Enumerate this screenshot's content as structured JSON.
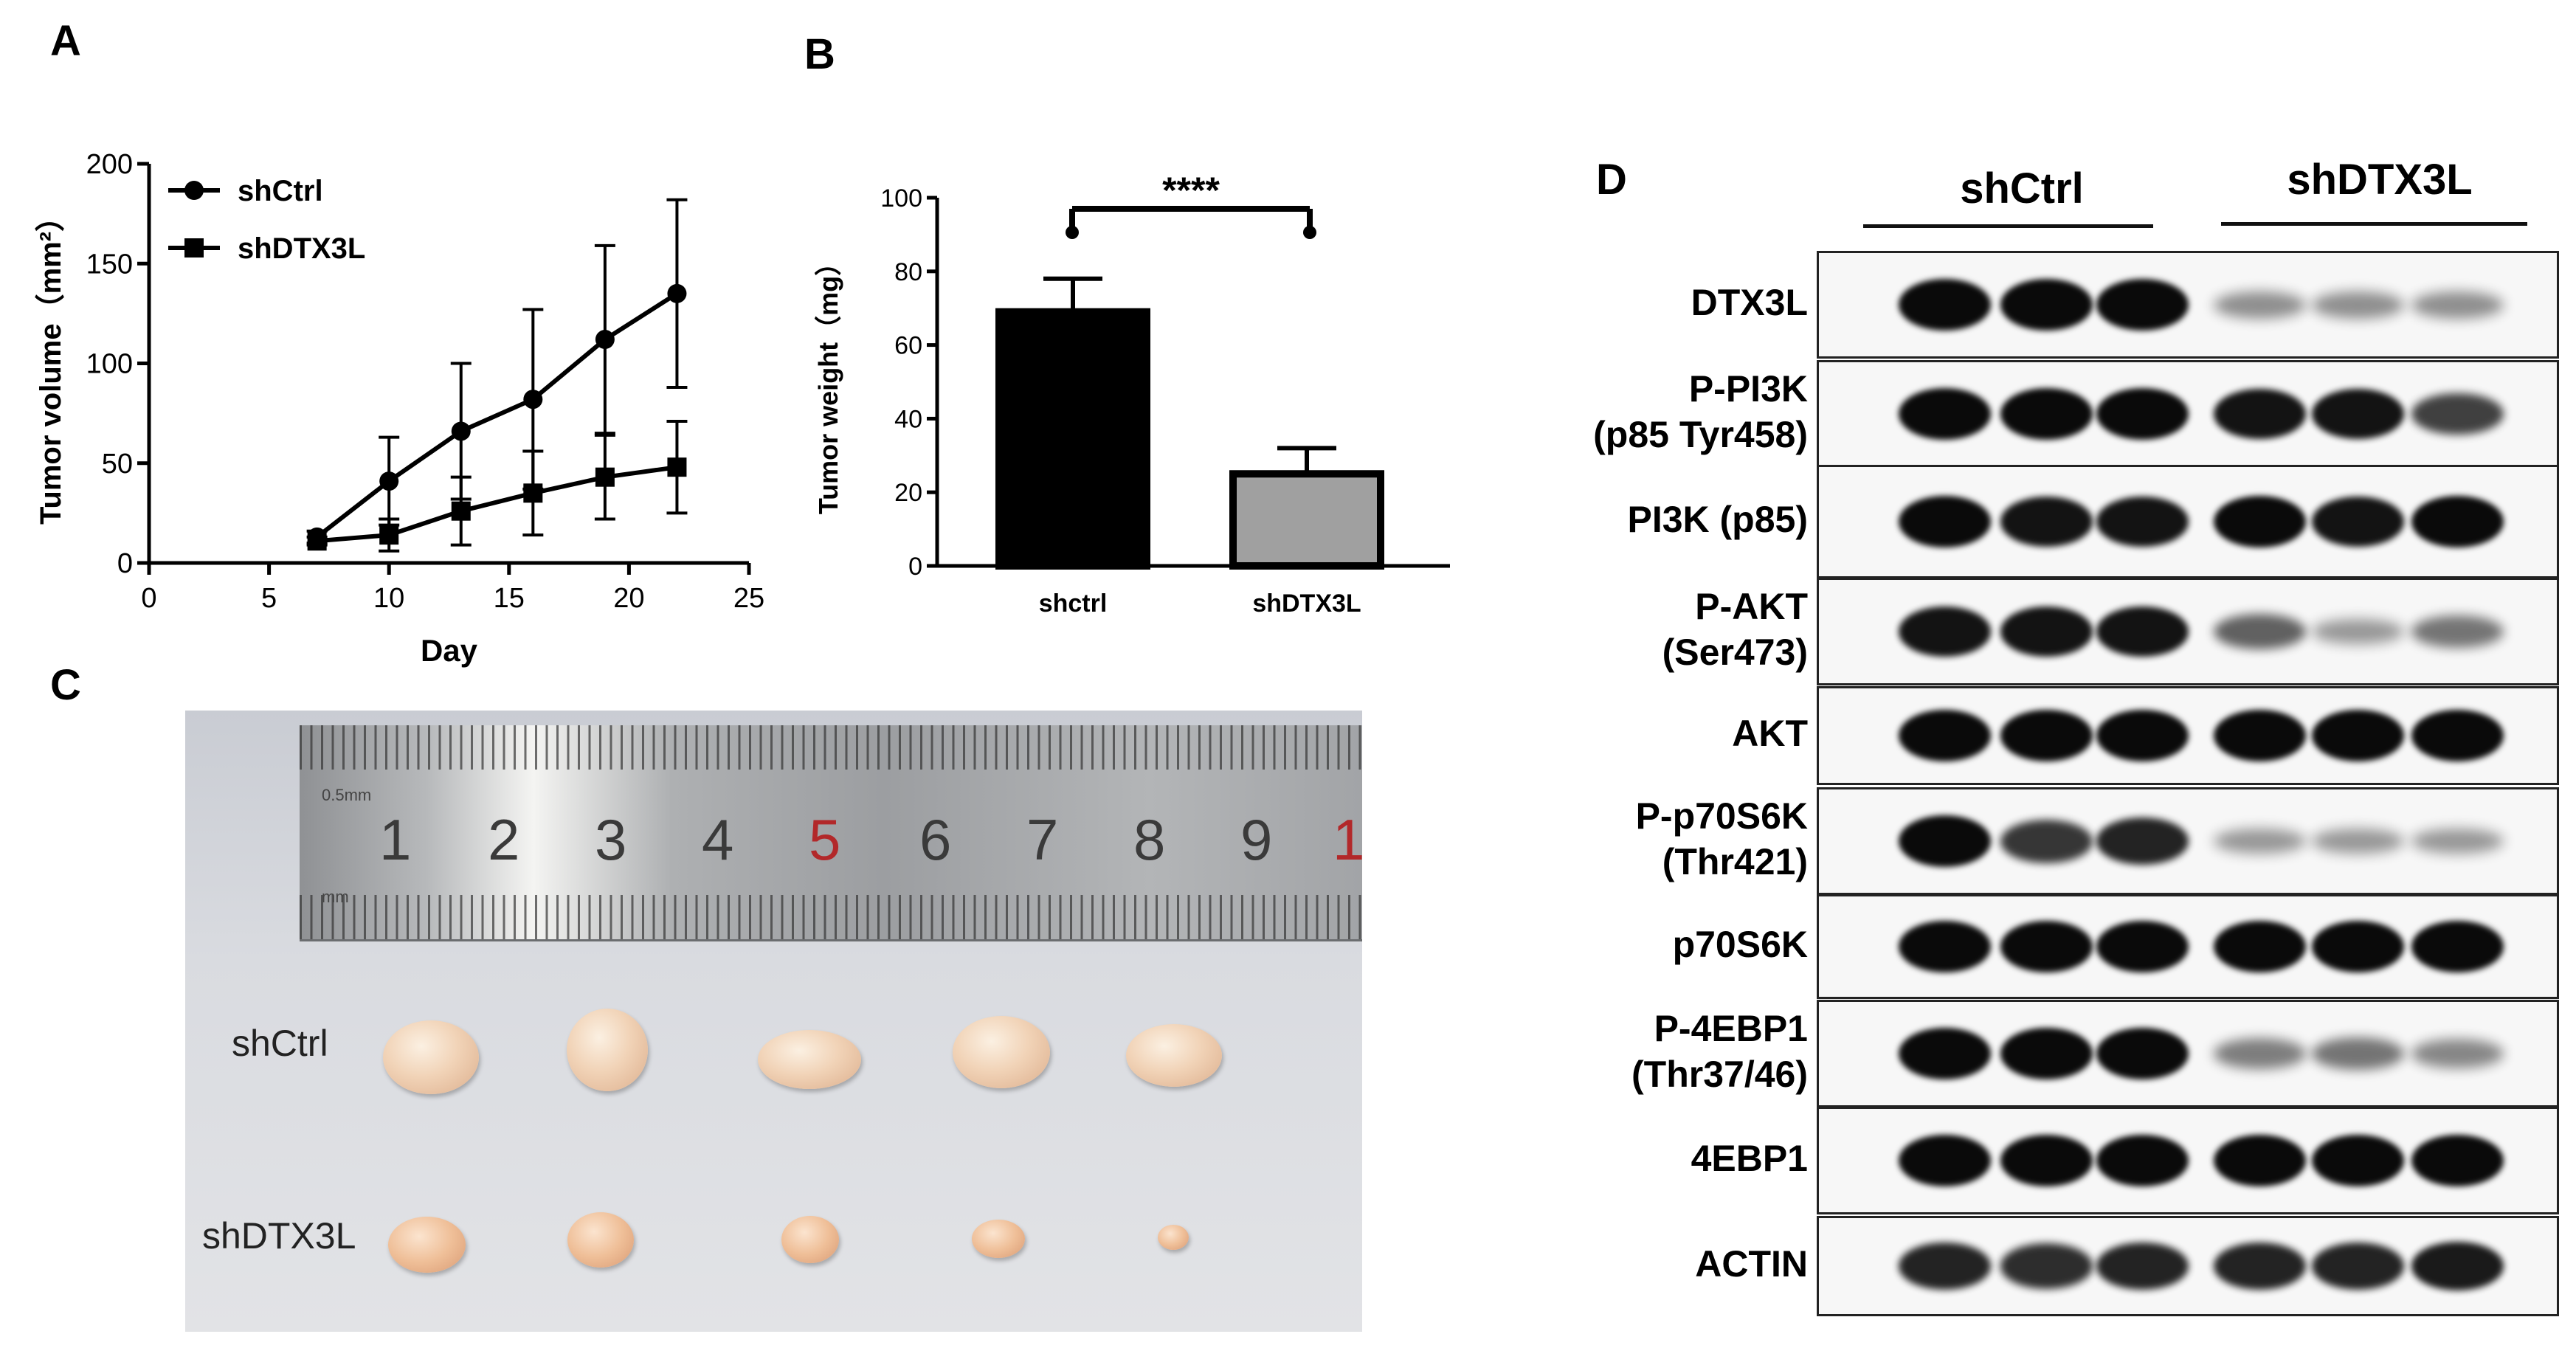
{
  "panels": {
    "a": "A",
    "b": "B",
    "c": "C",
    "d": "D"
  },
  "chart_data": [
    {
      "type": "line",
      "xlabel": "Day",
      "ylabel": "Tumor volume（mm²）",
      "xlim": [
        0,
        25
      ],
      "ylim": [
        0,
        200
      ],
      "xticks": [
        0,
        5,
        10,
        15,
        20,
        25
      ],
      "yticks": [
        0,
        50,
        100,
        150,
        200
      ],
      "legend": "top-left",
      "series": [
        {
          "name": "shCtrl",
          "marker": "circle",
          "x": [
            7,
            10,
            13,
            16,
            19,
            22
          ],
          "y": [
            13,
            41,
            66,
            82,
            112,
            135
          ],
          "err": [
            3,
            22,
            34,
            45,
            47,
            47
          ]
        },
        {
          "name": "shDTX3L",
          "marker": "square",
          "x": [
            7,
            10,
            13,
            16,
            19,
            22
          ],
          "y": [
            11,
            14,
            26,
            35,
            43,
            48
          ],
          "err": [
            2,
            8,
            17,
            21,
            21,
            23
          ]
        }
      ]
    },
    {
      "type": "bar",
      "categories": [
        "shctrl",
        "shDTX3L"
      ],
      "values": [
        69,
        25
      ],
      "err": [
        9,
        7
      ],
      "colors": [
        "#000000",
        "#a0a0a0"
      ],
      "ylabel": "Tumor weight（mg）",
      "ylim": [
        0,
        100
      ],
      "yticks": [
        0,
        20,
        40,
        60,
        80,
        100
      ],
      "significance": "****"
    }
  ],
  "photo": {
    "ruler_unit_top": "0.5mm",
    "ruler_unit_bottom": "mm",
    "ruler_numbers": [
      "1",
      "2",
      "3",
      "4",
      "5",
      "6",
      "7",
      "8",
      "9",
      "1"
    ],
    "row_labels": [
      "shCtrl",
      "shDTX3L"
    ]
  },
  "blot": {
    "groups": [
      "shCtrl",
      "shDTX3L"
    ],
    "rows": [
      {
        "label": "DTX3L",
        "intensity": [
          1,
          1,
          1,
          0.25,
          0.25,
          0.25
        ]
      },
      {
        "label": "P-PI3K\n(p85 Tyr458)",
        "intensity": [
          1,
          1,
          1,
          0.95,
          0.95,
          0.7
        ]
      },
      {
        "label": "PI3K (p85)",
        "intensity": [
          1,
          0.95,
          0.95,
          1,
          0.95,
          1
        ]
      },
      {
        "label": "P-AKT\n(Ser473)",
        "intensity": [
          0.95,
          0.95,
          0.95,
          0.5,
          0.2,
          0.4
        ]
      },
      {
        "label": "AKT",
        "intensity": [
          1,
          1,
          1,
          1,
          1,
          1
        ]
      },
      {
        "label": "P-p70S6K\n(Thr421)",
        "intensity": [
          1,
          0.75,
          0.85,
          0.2,
          0.2,
          0.2
        ]
      },
      {
        "label": "p70S6K",
        "intensity": [
          1,
          1,
          1,
          1,
          1,
          1
        ]
      },
      {
        "label": "P-4EBP1\n(Thr37/46)",
        "intensity": [
          1,
          1,
          1,
          0.35,
          0.4,
          0.3
        ]
      },
      {
        "label": "4EBP1",
        "intensity": [
          1,
          1,
          1,
          1,
          1,
          1
        ]
      },
      {
        "label": "ACTIN",
        "intensity": [
          0.85,
          0.8,
          0.85,
          0.85,
          0.85,
          0.9
        ]
      }
    ]
  }
}
